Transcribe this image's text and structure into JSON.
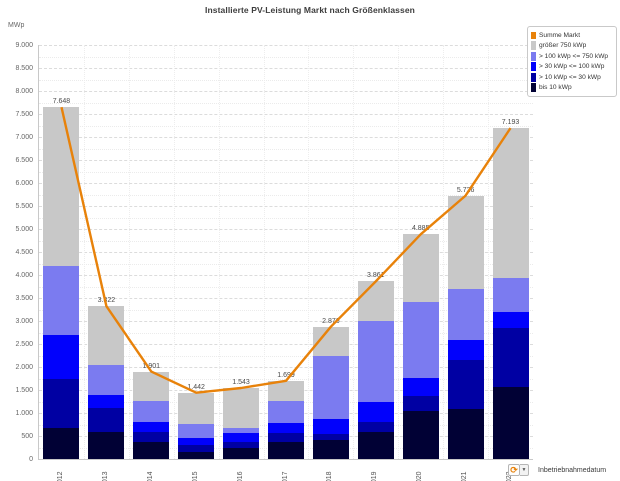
{
  "title": "Installierte PV-Leistung Markt nach Größenklassen",
  "y_axis": {
    "unit_label": "MWp",
    "max": 9000,
    "major_step": 500,
    "minor_step": 250,
    "tick_labels": [
      "0",
      "500",
      "1.000",
      "1.500",
      "2.000",
      "2.500",
      "3.000",
      "3.500",
      "4.000",
      "4.500",
      "5.000",
      "5.500",
      "6.000",
      "6.500",
      "7.000",
      "7.500",
      "8.000",
      "8.500",
      "9.000"
    ]
  },
  "x_axis": {
    "title": "Inbetriebnahmedatum",
    "categories": [
      "2012",
      "2013",
      "2014",
      "2015",
      "2016",
      "2017",
      "2018",
      "2019",
      "2020",
      "2021",
      "2022"
    ]
  },
  "legend": {
    "items": [
      {
        "label": "Summe Markt",
        "color": "#e8820a",
        "kind": "line"
      },
      {
        "label": "größer 750 kWp",
        "color": "#c8c8c8",
        "kind": "bar"
      },
      {
        "label": "> 100 kWp <= 750 kWp",
        "color": "#7b7bf0",
        "kind": "bar"
      },
      {
        "label": "> 30 kWp <= 100 kWp",
        "color": "#0101fc",
        "kind": "bar"
      },
      {
        "label": "> 10 kWp <= 30 kWp",
        "color": "#0000a3",
        "kind": "bar"
      },
      {
        "label": "bis 10 kWp",
        "color": "#010135",
        "kind": "bar"
      }
    ]
  },
  "chart_data": {
    "type": "bar",
    "subtype": "stacked-bars-with-line",
    "title": "Installierte PV-Leistung Markt nach Größenklassen",
    "ylabel": "MWp",
    "xlabel": "Inbetriebnahmedatum",
    "ylim": [
      0,
      9000
    ],
    "grid": true,
    "legend_position": "top-right",
    "categories": [
      "2012",
      "2013",
      "2014",
      "2015",
      "2016",
      "2017",
      "2018",
      "2019",
      "2020",
      "2021",
      "2022"
    ],
    "series": [
      {
        "name": "bis 10 kWp",
        "color": "#010135",
        "values": [
          670,
          580,
          370,
          160,
          235,
          376,
          413,
          594,
          1043,
          1080,
          1559
        ]
      },
      {
        "name": "> 10 kWp <= 30 kWp",
        "color": "#0000a3",
        "values": [
          1070,
          520,
          220,
          145,
          140,
          183,
          130,
          217,
          327,
          1072,
          1282
        ]
      },
      {
        "name": "> 30 kWp <= 100 kWp",
        "color": "#0101fc",
        "values": [
          960,
          300,
          215,
          160,
          195,
          217,
          320,
          435,
          397,
          428,
          362
        ]
      },
      {
        "name": "> 100 kWp <= 750 kWp",
        "color": "#7b7bf0",
        "values": [
          1500,
          650,
          455,
          290,
          110,
          492,
          1376,
          1761,
          1653,
          1115,
          740
        ]
      },
      {
        "name": "größer 750 kWp",
        "color": "#c8c8c8",
        "values": [
          3448,
          1272,
          641,
          687,
          863,
          431,
          637,
          854,
          1465,
          2031,
          3250
        ]
      }
    ],
    "line_series": {
      "name": "Summe Markt",
      "color": "#e8820a",
      "values": [
        7648,
        3322,
        1901,
        1442,
        1543,
        1699,
        2876,
        3861,
        4885,
        5726,
        7193
      ]
    },
    "totals_formatted": [
      "7.648",
      "3.322",
      "1.901",
      "1.442",
      "1.543",
      "1.699",
      "2.876",
      "3.861",
      "4.885",
      "5.726",
      "7.193"
    ]
  }
}
